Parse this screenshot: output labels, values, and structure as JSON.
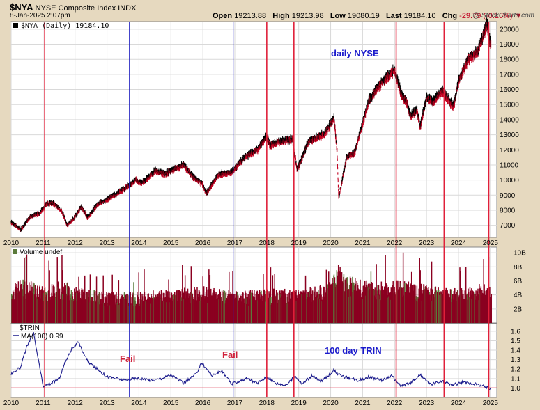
{
  "header": {
    "symbol": "$NYA",
    "name": "NYSE Composite Index",
    "exchange": "INDX",
    "datetime": "8-Jan-2025 2:07pm",
    "open_label": "Open",
    "open": "19213.88",
    "high_label": "High",
    "high": "19213.98",
    "low_label": "Low",
    "low": "19080.19",
    "last_label": "Last",
    "last": "19184.10",
    "chg_label": "Chg",
    "chg": "-29.79 (-0.16%)",
    "chg_arrow": "▼",
    "brand": "@ StockCharts.com"
  },
  "panels": {
    "price_legend": "$NYA (Daily) 19184.10",
    "price_annotation": "daily NYSE",
    "volume_legend": "Volume undef",
    "trin_legend_1": "$TRIN",
    "trin_legend_2": "MA(100) 0.99",
    "trin_annotation": "100 day TRIN",
    "fail_1": "Fail",
    "fail_2": "Fail"
  },
  "chart_data": [
    {
      "type": "line",
      "title": "$NYA (Daily) 19184.10",
      "ylim": [
        6200,
        20500
      ],
      "yticks": [
        7000,
        8000,
        9000,
        10000,
        11000,
        12000,
        13000,
        14000,
        15000,
        16000,
        17000,
        18000,
        19000,
        20000
      ],
      "x": [
        2010.0,
        2010.3,
        2010.6,
        2010.9,
        2011.1,
        2011.3,
        2011.6,
        2011.75,
        2011.9,
        2012.2,
        2012.4,
        2012.7,
        2013.0,
        2013.3,
        2013.6,
        2013.9,
        2014.1,
        2014.5,
        2014.8,
        2015.4,
        2015.7,
        2016.0,
        2016.1,
        2016.5,
        2016.9,
        2017.3,
        2017.7,
        2018.0,
        2018.1,
        2018.5,
        2018.8,
        2018.95,
        2019.3,
        2019.6,
        2019.8,
        2020.1,
        2020.2,
        2020.25,
        2020.5,
        2020.75,
        2020.9,
        2021.2,
        2021.5,
        2021.8,
        2022.0,
        2022.2,
        2022.4,
        2022.5,
        2022.7,
        2022.8,
        2023.0,
        2023.2,
        2023.5,
        2023.8,
        2023.85,
        2024.0,
        2024.3,
        2024.6,
        2024.9,
        2024.95,
        2025.0
      ],
      "values": [
        7200,
        6700,
        7600,
        7800,
        8400,
        8500,
        7900,
        7000,
        7300,
        8200,
        7500,
        8400,
        8700,
        9100,
        9500,
        10000,
        9800,
        10600,
        10400,
        11000,
        10200,
        9700,
        9100,
        10400,
        10500,
        11500,
        12000,
        12900,
        12300,
        12600,
        12700,
        10700,
        12500,
        12900,
        13000,
        14100,
        12000,
        8800,
        11500,
        11800,
        13000,
        15300,
        16200,
        16900,
        17300,
        15800,
        15000,
        14200,
        14700,
        13500,
        15500,
        15200,
        15900,
        15000,
        14900,
        16500,
        18000,
        18500,
        20400,
        19400,
        19184
      ],
      "series": [
        {
          "name": "$NYA",
          "values": [
            7200,
            6700,
            7600,
            7800,
            8400,
            8500,
            7900,
            7000,
            7300,
            8200,
            7500,
            8400,
            8700,
            9100,
            9500,
            10000,
            9800,
            10600,
            10400,
            11000,
            10200,
            9700,
            9100,
            10400,
            10500,
            11500,
            12000,
            12900,
            12300,
            12600,
            12700,
            10700,
            12500,
            12900,
            13000,
            14100,
            12000,
            8800,
            11500,
            11800,
            13000,
            15300,
            16200,
            16900,
            17300,
            15800,
            15000,
            14200,
            14700,
            13500,
            15500,
            15200,
            15900,
            15000,
            14900,
            16500,
            18000,
            18500,
            20400,
            19400,
            19184
          ]
        }
      ],
      "annotations": [
        "daily NYSE"
      ]
    },
    {
      "type": "bar",
      "title": "Volume undef",
      "ylim": [
        0,
        10800000000
      ],
      "ytick_labels": [
        "2B",
        "4B",
        "6B",
        "8B",
        "10B"
      ],
      "ytick_values": [
        2000000000,
        4000000000,
        6000000000,
        8000000000,
        10000000000
      ],
      "x": [
        2010.0,
        2010.35,
        2010.7,
        2011.0,
        2011.6,
        2012.0,
        2013.0,
        2014.0,
        2015.0,
        2016.0,
        2017.0,
        2018.0,
        2019.0,
        2020.0,
        2020.2,
        2020.5,
        2021.0,
        2021.5,
        2022.0,
        2023.0,
        2024.0,
        2025.0
      ],
      "values": [
        4300000000,
        5200000000,
        4600000000,
        4200000000,
        5000000000,
        4100000000,
        3600000000,
        3600000000,
        3900000000,
        4200000000,
        3600000000,
        4000000000,
        3800000000,
        4800000000,
        7000000000,
        5400000000,
        5000000000,
        4700000000,
        4900000000,
        4500000000,
        4000000000,
        4800000000
      ]
    },
    {
      "type": "line",
      "title": "$TRIN",
      "ylim": [
        0.9,
        1.68
      ],
      "yticks": [
        1.0,
        1.1,
        1.2,
        1.3,
        1.4,
        1.5,
        1.6
      ],
      "x": [
        2010.0,
        2010.3,
        2010.5,
        2010.7,
        2011.0,
        2011.2,
        2011.5,
        2011.7,
        2011.9,
        2012.1,
        2012.4,
        2012.7,
        2013.0,
        2013.3,
        2013.6,
        2013.8,
        2014.1,
        2014.4,
        2014.7,
        2015.0,
        2015.4,
        2015.8,
        2015.95,
        2016.3,
        2016.6,
        2016.9,
        2017.1,
        2017.4,
        2017.7,
        2018.0,
        2018.3,
        2018.6,
        2018.9,
        2019.1,
        2019.4,
        2019.7,
        2019.9,
        2020.1,
        2020.3,
        2020.6,
        2020.9,
        2021.2,
        2021.6,
        2021.9,
        2022.2,
        2022.5,
        2022.8,
        2023.1,
        2023.5,
        2023.8,
        2024.1,
        2024.4,
        2024.7,
        2025.0
      ],
      "values": [
        1.15,
        1.22,
        1.45,
        1.58,
        1.02,
        1.04,
        1.1,
        1.28,
        1.42,
        1.48,
        1.28,
        1.2,
        1.12,
        1.1,
        1.08,
        1.1,
        1.1,
        1.08,
        1.1,
        1.14,
        1.05,
        1.15,
        1.27,
        1.13,
        1.18,
        1.04,
        1.07,
        1.1,
        1.05,
        1.12,
        1.05,
        1.03,
        1.13,
        1.04,
        1.13,
        1.07,
        1.12,
        1.19,
        1.13,
        1.1,
        1.08,
        1.12,
        1.08,
        1.13,
        1.02,
        1.05,
        1.14,
        1.04,
        1.07,
        1.03,
        1.06,
        1.05,
        1.03,
        0.99
      ],
      "series": [
        {
          "name": "MA(100) 0.99",
          "values": [
            1.15,
            1.22,
            1.45,
            1.58,
            1.02,
            1.04,
            1.1,
            1.28,
            1.42,
            1.48,
            1.28,
            1.2,
            1.12,
            1.1,
            1.08,
            1.1,
            1.1,
            1.08,
            1.1,
            1.14,
            1.05,
            1.15,
            1.27,
            1.13,
            1.18,
            1.04,
            1.07,
            1.1,
            1.05,
            1.12,
            1.05,
            1.03,
            1.13,
            1.04,
            1.13,
            1.07,
            1.12,
            1.19,
            1.13,
            1.1,
            1.08,
            1.12,
            1.08,
            1.13,
            1.02,
            1.05,
            1.14,
            1.04,
            1.07,
            1.03,
            1.06,
            1.05,
            1.03,
            0.99
          ]
        }
      ],
      "reference_line": 1.0,
      "annotations": [
        "100 day TRIN",
        "Fail",
        "Fail"
      ]
    }
  ],
  "x_axis": {
    "labels": [
      "2010",
      "2011",
      "2012",
      "2013",
      "2014",
      "2015",
      "2016",
      "2017",
      "2018",
      "2019",
      "2020",
      "2021",
      "2022",
      "2023",
      "2024",
      "2025"
    ],
    "range": [
      2010.0,
      2025.2
    ]
  },
  "vertical_markers": {
    "red": [
      2011.05,
      2018.0,
      2018.85,
      2022.05,
      2023.55,
      2024.95
    ],
    "blue": [
      2013.7,
      2016.95
    ]
  },
  "colors": {
    "background": "#e6d9bf",
    "plot_bg": "#ffffff",
    "grid": "#d9d9d9",
    "price_up": "#000000",
    "price_down": "#c00020",
    "volume": "#8b0020",
    "trin_line": "#1a1a8c",
    "marker_red": "#e0203a",
    "marker_blue": "#2020c0",
    "annotation_blue": "#1a1acc",
    "annotation_red": "#d0203a"
  }
}
